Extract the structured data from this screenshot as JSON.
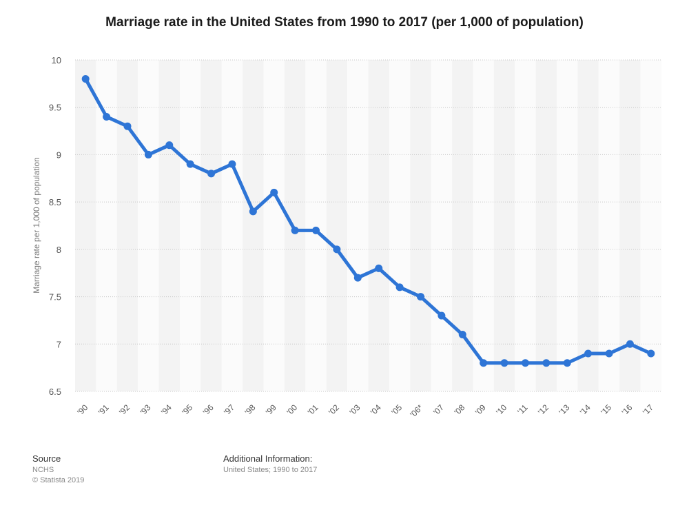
{
  "chart_data": {
    "type": "line",
    "title": "Marriage rate in the United States from 1990 to 2017 (per 1,000 of population)",
    "xlabel": "",
    "ylabel": "Marriage rate per 1,000 of population",
    "categories": [
      "'90",
      "'91",
      "'92",
      "'93",
      "'94",
      "'95",
      "'96",
      "'97",
      "'98",
      "'99",
      "'00",
      "'01",
      "'02",
      "'03",
      "'04",
      "'05",
      "'06*",
      "'07",
      "'08",
      "'09",
      "'10",
      "'11",
      "'12",
      "'13",
      "'14",
      "'15",
      "'16",
      "'17"
    ],
    "series": [
      {
        "values": [
          9.8,
          9.4,
          9.3,
          9.0,
          9.1,
          8.9,
          8.8,
          8.9,
          8.4,
          8.6,
          8.2,
          8.2,
          8.0,
          7.7,
          7.8,
          7.6,
          7.5,
          7.3,
          7.1,
          6.8,
          6.8,
          6.8,
          6.8,
          6.8,
          6.9,
          6.9,
          7.0,
          6.9
        ]
      }
    ],
    "ylim": [
      6.5,
      10
    ],
    "yticks": [
      "6.5",
      "7",
      "7.5",
      "8",
      "8.5",
      "9",
      "9.5",
      "10"
    ],
    "grid": true,
    "line_color": "#2e75d6"
  },
  "footer": {
    "source_heading": "Source",
    "source_lines": [
      "NCHS",
      "© Statista 2019"
    ],
    "info_heading": "Additional Information:",
    "info_lines": [
      "United States; 1990 to 2017"
    ]
  }
}
